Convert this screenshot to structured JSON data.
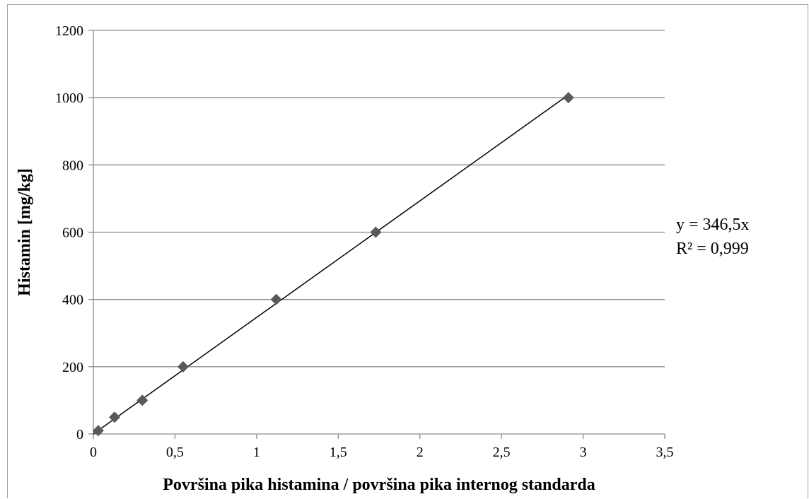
{
  "chart_data": {
    "type": "scatter",
    "title": "",
    "xlabel": "Površina pika histamina / površina pika internog standarda",
    "ylabel": "Histamin [mg/kg]",
    "xlim": [
      0,
      3.5
    ],
    "ylim": [
      0,
      1200
    ],
    "x_ticks": [
      0,
      0.5,
      1,
      1.5,
      2,
      2.5,
      3,
      3.5
    ],
    "x_tick_labels": [
      "0",
      "0,5",
      "1",
      "1,5",
      "2",
      "2,5",
      "3",
      "3,5"
    ],
    "y_ticks": [
      0,
      200,
      400,
      600,
      800,
      1000,
      1200
    ],
    "y_tick_labels": [
      "0",
      "200",
      "400",
      "600",
      "800",
      "1000",
      "1200"
    ],
    "grid": "horizontal",
    "marker": "diamond",
    "marker_color": "#595959",
    "line_color": "#000000",
    "points": [
      {
        "x": 0.03,
        "y": 10
      },
      {
        "x": 0.13,
        "y": 50
      },
      {
        "x": 0.3,
        "y": 100
      },
      {
        "x": 0.55,
        "y": 200
      },
      {
        "x": 1.12,
        "y": 400
      },
      {
        "x": 1.73,
        "y": 600
      },
      {
        "x": 2.91,
        "y": 1000
      }
    ],
    "trendline": {
      "type": "linear",
      "slope": 346.5,
      "intercept": 0,
      "x_range": [
        0,
        2.91
      ],
      "equation": "y = 346,5x",
      "r2": "R² = 0,999"
    }
  }
}
